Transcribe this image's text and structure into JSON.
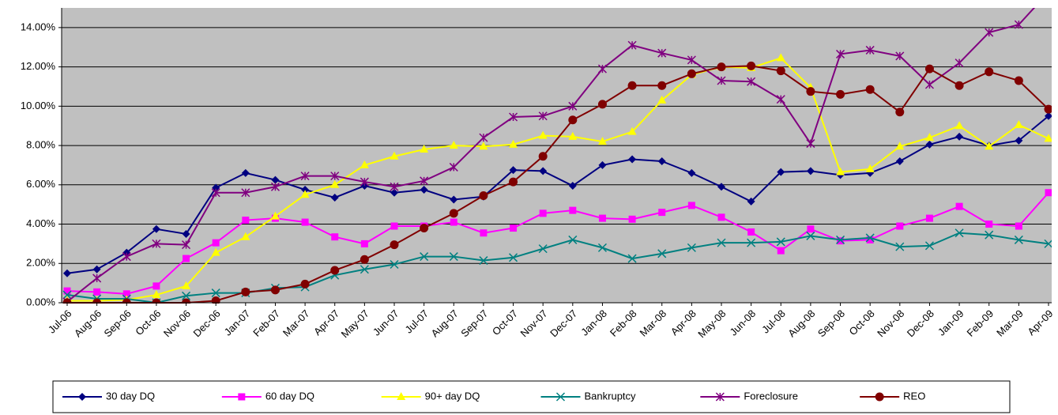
{
  "chart_data": {
    "type": "line",
    "categories": [
      "Jul-06",
      "Aug-06",
      "Sep-06",
      "Oct-06",
      "Nov-06",
      "Dec-06",
      "Jan-07",
      "Feb-07",
      "Mar-07",
      "Apr-07",
      "May-07",
      "Jun-07",
      "Jul-07",
      "Aug-07",
      "Sep-07",
      "Oct-07",
      "Nov-07",
      "Dec-07",
      "Jan-08",
      "Feb-08",
      "Mar-08",
      "Apr-08",
      "May-08",
      "Jun-08",
      "Jul-08",
      "Aug-08",
      "Sep-08",
      "Oct-08",
      "Nov-08",
      "Dec-08",
      "Jan-09",
      "Feb-09",
      "Mar-09",
      "Apr-09"
    ],
    "ylim": [
      0,
      15
    ],
    "yticks": [
      {
        "value": 0,
        "label": "0.00%"
      },
      {
        "value": 2,
        "label": "2.00%"
      },
      {
        "value": 4,
        "label": "4.00%"
      },
      {
        "value": 6,
        "label": "6.00%"
      },
      {
        "value": 8,
        "label": "8.00%"
      },
      {
        "value": 10,
        "label": "10.00%"
      },
      {
        "value": 12,
        "label": "12.00%"
      },
      {
        "value": 14,
        "label": "14.00%"
      }
    ],
    "grid": true,
    "series": [
      {
        "name": "30 day DQ",
        "color": "#000080",
        "marker": "diamond",
        "values": [
          1.5,
          1.7,
          2.55,
          3.75,
          3.5,
          5.85,
          6.6,
          6.25,
          5.75,
          5.35,
          5.95,
          5.6,
          5.75,
          5.25,
          5.4,
          6.75,
          6.7,
          5.95,
          7.0,
          7.3,
          7.2,
          6.6,
          5.9,
          5.15,
          6.65,
          6.7,
          6.5,
          6.6,
          7.2,
          8.05,
          8.45,
          8.0,
          8.25,
          9.5
        ]
      },
      {
        "name": "60 day DQ",
        "color": "#ff00ff",
        "marker": "square",
        "values": [
          0.6,
          0.55,
          0.45,
          0.85,
          2.25,
          3.05,
          4.2,
          4.3,
          4.1,
          3.35,
          3.0,
          3.9,
          3.9,
          4.1,
          3.55,
          3.8,
          4.55,
          4.7,
          4.3,
          4.25,
          4.6,
          4.95,
          4.35,
          3.6,
          2.65,
          3.75,
          3.15,
          3.2,
          3.9,
          4.3,
          4.9,
          4.0,
          3.9,
          5.6
        ]
      },
      {
        "name": "90+ day DQ",
        "color": "#ffff00",
        "marker": "triangle",
        "values": [
          0.1,
          0.1,
          0.15,
          0.4,
          0.85,
          2.55,
          3.35,
          4.4,
          5.5,
          6.0,
          7.0,
          7.45,
          7.8,
          8.0,
          7.95,
          8.05,
          8.5,
          8.45,
          8.2,
          8.7,
          10.3,
          11.6,
          12.0,
          11.95,
          12.45,
          10.95,
          6.65,
          6.8,
          7.95,
          8.4,
          9.0,
          7.95,
          9.05,
          8.35
        ]
      },
      {
        "name": "Bankruptcy",
        "color": "#008080",
        "marker": "x",
        "values": [
          0.4,
          0.2,
          0.2,
          0.0,
          0.35,
          0.5,
          0.5,
          0.75,
          0.8,
          1.4,
          1.7,
          1.95,
          2.35,
          2.35,
          2.15,
          2.3,
          2.75,
          3.2,
          2.8,
          2.25,
          2.5,
          2.8,
          3.05,
          3.05,
          3.1,
          3.4,
          3.2,
          3.3,
          2.85,
          2.9,
          3.55,
          3.45,
          3.2,
          3.0
        ]
      },
      {
        "name": "Foreclosure",
        "color": "#800080",
        "marker": "star",
        "values": [
          0.05,
          1.25,
          2.35,
          3.0,
          2.95,
          5.6,
          5.6,
          5.9,
          6.45,
          6.45,
          6.15,
          5.9,
          6.2,
          6.9,
          8.4,
          9.45,
          9.5,
          10.0,
          11.9,
          13.1,
          12.7,
          12.35,
          11.3,
          11.25,
          10.35,
          8.1,
          12.65,
          12.85,
          12.55,
          11.1,
          12.2,
          13.75,
          14.15,
          15.8
        ]
      },
      {
        "name": "REO",
        "color": "#800000",
        "marker": "circle",
        "values": [
          0,
          0,
          0,
          0,
          0,
          0.1,
          0.55,
          0.65,
          0.95,
          1.65,
          2.2,
          2.95,
          3.8,
          4.55,
          5.45,
          6.15,
          7.45,
          9.3,
          10.1,
          11.05,
          11.05,
          11.65,
          12.0,
          12.05,
          11.8,
          10.75,
          10.6,
          10.85,
          9.7,
          11.9,
          11.05,
          11.75,
          11.3,
          9.85
        ]
      }
    ]
  }
}
